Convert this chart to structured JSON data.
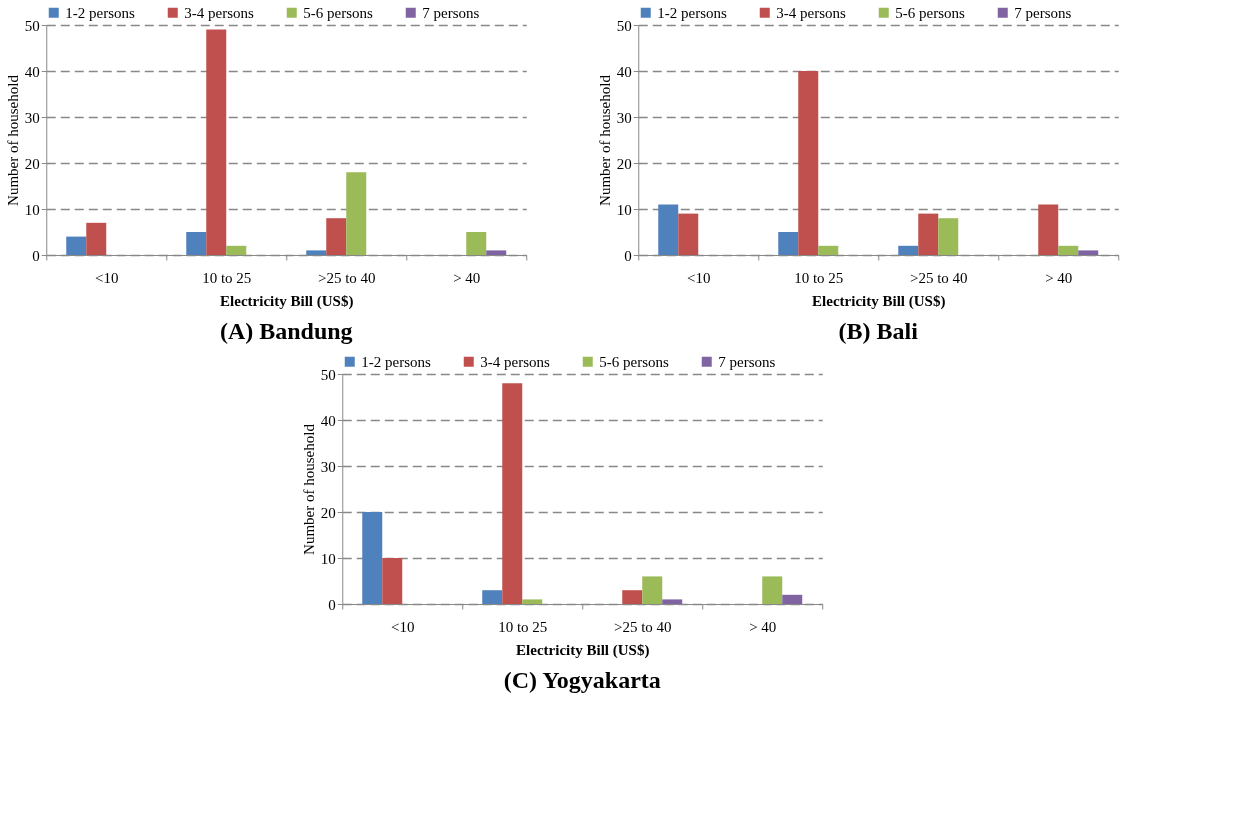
{
  "chart_data": [
    {
      "type": "bar",
      "title": "(A) Bandung",
      "xlabel": "Electricity Bill (US$)",
      "ylabel": "Number of household",
      "categories": [
        "<10",
        "10 to 25",
        ">25 to 40",
        "> 40"
      ],
      "ylim": [
        0,
        50
      ],
      "yticks": [
        0,
        10,
        20,
        30,
        40,
        50
      ],
      "grid": "y",
      "legend": "top",
      "series": [
        {
          "name": "1-2 persons",
          "color": "#4f81bd",
          "values": [
            4,
            5,
            1,
            0
          ]
        },
        {
          "name": "3-4 persons",
          "color": "#c0504d",
          "values": [
            7,
            49,
            8,
            0
          ]
        },
        {
          "name": "5-6 persons",
          "color": "#9bbb59",
          "values": [
            0,
            2,
            18,
            5
          ]
        },
        {
          "name": "7 persons",
          "color": "#8064a2",
          "values": [
            0,
            0,
            0,
            1
          ]
        }
      ]
    },
    {
      "type": "bar",
      "title": "(B) Bali",
      "xlabel": "Electricity Bill (US$)",
      "ylabel": "Number of household",
      "categories": [
        "<10",
        "10 to 25",
        ">25 to 40",
        "> 40"
      ],
      "ylim": [
        0,
        50
      ],
      "yticks": [
        0,
        10,
        20,
        30,
        40,
        50
      ],
      "grid": "y",
      "legend": "top",
      "series": [
        {
          "name": "1-2 persons",
          "color": "#4f81bd",
          "values": [
            11,
            5,
            2,
            0
          ]
        },
        {
          "name": "3-4 persons",
          "color": "#c0504d",
          "values": [
            9,
            40,
            9,
            11
          ]
        },
        {
          "name": "5-6 persons",
          "color": "#9bbb59",
          "values": [
            0,
            2,
            8,
            2
          ]
        },
        {
          "name": "7 persons",
          "color": "#8064a2",
          "values": [
            0,
            0,
            0,
            1
          ]
        }
      ]
    },
    {
      "type": "bar",
      "title": "(C) Yogyakarta",
      "xlabel": "Electricity Bill (US$)",
      "ylabel": "Number of household",
      "categories": [
        "<10",
        "10 to 25",
        ">25 to 40",
        "> 40"
      ],
      "ylim": [
        0,
        50
      ],
      "yticks": [
        0,
        10,
        20,
        30,
        40,
        50
      ],
      "grid": "y",
      "legend": "top",
      "series": [
        {
          "name": "1-2 persons",
          "color": "#4f81bd",
          "values": [
            20,
            3,
            0,
            0
          ]
        },
        {
          "name": "3-4 persons",
          "color": "#c0504d",
          "values": [
            10,
            48,
            3,
            0
          ]
        },
        {
          "name": "5-6 persons",
          "color": "#9bbb59",
          "values": [
            0,
            1,
            6,
            6
          ]
        },
        {
          "name": "7 persons",
          "color": "#8064a2",
          "values": [
            0,
            0,
            1,
            2
          ]
        }
      ]
    }
  ]
}
